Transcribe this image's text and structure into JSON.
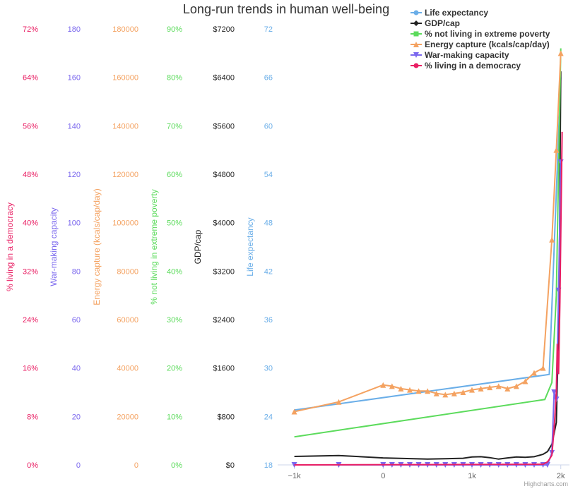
{
  "chart_data": {
    "type": "line",
    "title": "Long-run trends in human well-being",
    "credits": "Highcharts.com",
    "x_axis": {
      "min": -1100,
      "max": 2050,
      "ticks": [
        -1000,
        0,
        1000,
        2000
      ],
      "tick_labels": [
        "−1k",
        "0",
        "1k",
        "2k"
      ]
    },
    "y_axes": [
      {
        "key": "democracy",
        "title": "% living in a democracy",
        "color": "#e91e63",
        "min": 0,
        "max": 72,
        "ticks": [
          "0%",
          "8%",
          "16%",
          "24%",
          "32%",
          "40%",
          "48%",
          "56%",
          "64%",
          "72%"
        ]
      },
      {
        "key": "war",
        "title": "War-making capacity",
        "color": "#7b68ee",
        "min": 0,
        "max": 180,
        "ticks": [
          "0",
          "20",
          "40",
          "60",
          "80",
          "100",
          "120",
          "140",
          "160",
          "180"
        ]
      },
      {
        "key": "energy",
        "title": "Energy capture (kcals/cap/day)",
        "color": "#f4a261",
        "min": 0,
        "max": 180000,
        "ticks": [
          "0",
          "20000",
          "40000",
          "60000",
          "80000",
          "100000",
          "120000",
          "140000",
          "160000",
          "180000"
        ]
      },
      {
        "key": "poverty",
        "title": "% not living in extreme poverty",
        "color": "#5cdb5c",
        "min": 0,
        "max": 90,
        "ticks": [
          "0%",
          "10%",
          "20%",
          "30%",
          "40%",
          "50%",
          "60%",
          "70%",
          "80%",
          "90%"
        ]
      },
      {
        "key": "gdp",
        "title": "GDP/cap",
        "color": "#222222",
        "min": 0,
        "max": 7200,
        "ticks": [
          "$0",
          "$800",
          "$1600",
          "$2400",
          "$3200",
          "$4000",
          "$4800",
          "$5600",
          "$6400",
          "$7200"
        ]
      },
      {
        "key": "life",
        "title": "Life expectancy",
        "color": "#6aaee8",
        "min": 18,
        "max": 72,
        "ticks": [
          "18",
          "24",
          "30",
          "36",
          "42",
          "48",
          "54",
          "60",
          "66",
          "72"
        ]
      }
    ],
    "series": [
      {
        "name": "Life expectancy",
        "axis": "life",
        "color": "#6aaee8",
        "marker": "circle",
        "x": [
          -1000,
          1870,
          2000
        ],
        "y": [
          24.8,
          29.2,
          66
        ]
      },
      {
        "name": "GDP/cap",
        "axis": "gdp",
        "color": "#222222",
        "marker": "diamond",
        "x": [
          -1000,
          -500,
          0,
          500,
          900,
          1000,
          1100,
          1200,
          1300,
          1400,
          1500,
          1600,
          1700,
          1800,
          1850,
          1900,
          1950,
          1980,
          2000
        ],
        "y": [
          140,
          155,
          115,
          95,
          110,
          130,
          135,
          120,
          95,
          115,
          130,
          125,
          135,
          175,
          220,
          340,
          700,
          2500,
          6500
        ]
      },
      {
        "name": "% not living in extreme poverty",
        "axis": "poverty",
        "color": "#5cdb5c",
        "marker": "square",
        "x": [
          -1000,
          1820,
          1900,
          1950,
          2000
        ],
        "y": [
          5.8,
          13.5,
          17,
          35,
          86
        ]
      },
      {
        "name": "Energy capture (kcals/cap/day)",
        "axis": "energy",
        "color": "#f4a261",
        "marker": "triangle",
        "x": [
          -1000,
          -500,
          0,
          100,
          200,
          300,
          400,
          500,
          600,
          700,
          800,
          900,
          1000,
          1100,
          1200,
          1300,
          1400,
          1500,
          1600,
          1700,
          1800,
          1900,
          1950,
          2000
        ],
        "y": [
          22000,
          26000,
          33000,
          32500,
          31500,
          31000,
          30500,
          30500,
          29500,
          29000,
          29500,
          30000,
          31000,
          31500,
          32000,
          32500,
          31500,
          32500,
          34500,
          38000,
          40000,
          93000,
          130000,
          170000
        ]
      },
      {
        "name": "War-making capacity",
        "axis": "war",
        "color": "#7b68ee",
        "marker": "triangle-down",
        "x": [
          -1000,
          -500,
          0,
          100,
          200,
          300,
          400,
          500,
          600,
          700,
          800,
          900,
          1000,
          1100,
          1200,
          1300,
          1400,
          1500,
          1600,
          1700,
          1800,
          1850,
          1900,
          1925,
          1950,
          1975,
          2000
        ],
        "y": [
          0,
          0,
          0,
          0,
          0,
          0,
          0,
          0,
          0,
          0,
          0,
          0,
          0,
          0,
          0,
          0,
          0,
          0,
          0,
          0,
          0,
          0,
          5,
          30,
          27,
          72,
          125
        ]
      },
      {
        "name": "% living in a democracy",
        "axis": "democracy",
        "color": "#e91e63",
        "marker": "circle",
        "x": [
          -1000,
          1800,
          1850,
          1875,
          1900,
          1925,
          1950,
          1960,
          1975,
          1990,
          2000,
          2015
        ],
        "y": [
          0,
          0.1,
          0.5,
          1,
          1.6,
          6,
          12,
          20,
          15,
          27,
          38,
          55
        ]
      }
    ]
  }
}
